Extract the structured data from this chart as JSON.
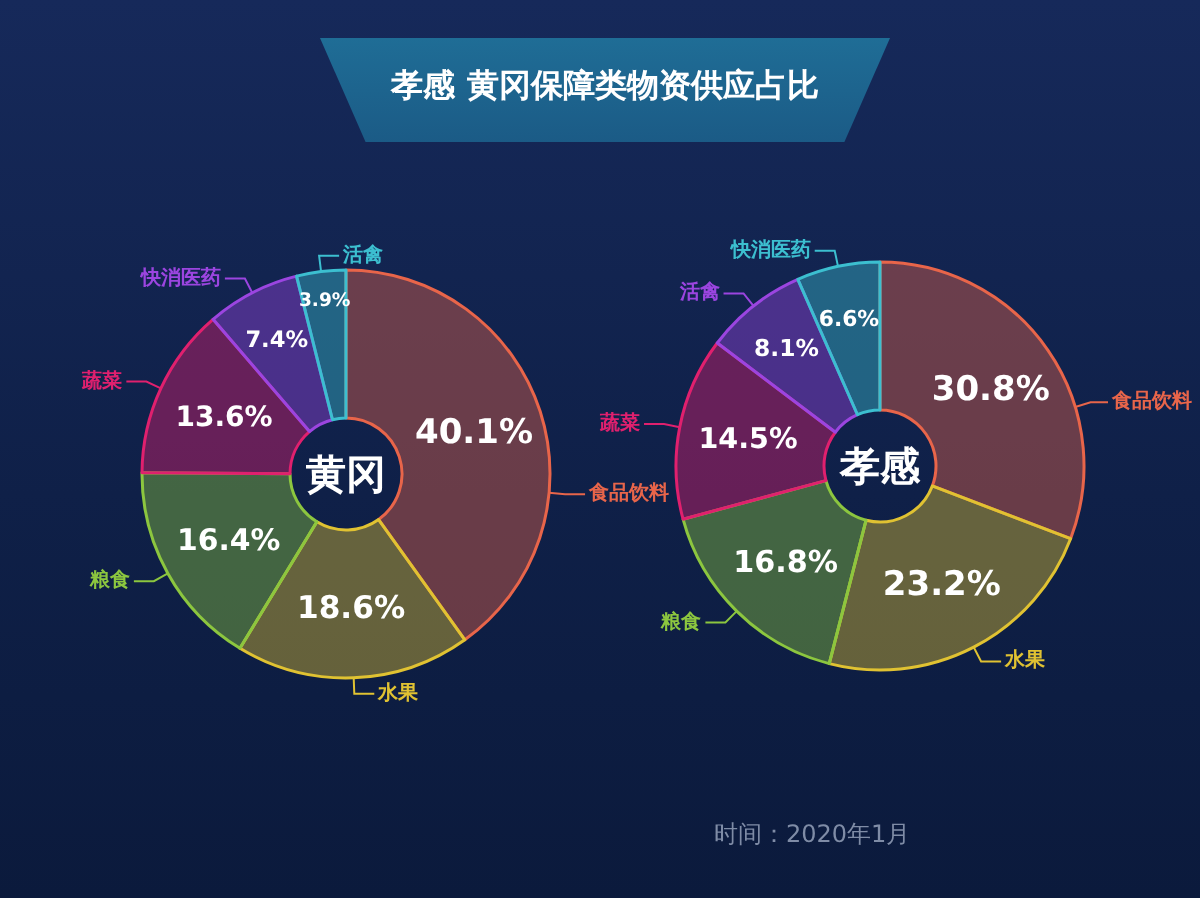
{
  "chart_data": [
    {
      "type": "donut",
      "title": "孝感 黄冈保障类物资供应占比",
      "categories": [
        "食品饮料",
        "水果",
        "粮食",
        "蔬菜",
        "快消医药",
        "活禽"
      ],
      "values": [
        40.1,
        18.6,
        16.4,
        13.6,
        7.4,
        3.9
      ],
      "colors": [
        "#e8654a",
        "#e0c232",
        "#8cc63f",
        "#e0206e",
        "#9b45e0",
        "#3cbfd0"
      ],
      "value_labels": [
        "40.1%",
        "18.6%",
        "16.4%",
        "13.6%",
        "7.4%",
        "3.9%"
      ],
      "annotations": [
        "黄冈"
      ]
    },
    {
      "type": "donut",
      "categories": [
        "食品饮料",
        "水果",
        "粮食",
        "蔬菜",
        "活禽",
        "快消医药"
      ],
      "values": [
        30.8,
        23.2,
        16.8,
        14.5,
        8.1,
        6.6
      ],
      "colors": [
        "#e8654a",
        "#e0c232",
        "#8cc63f",
        "#e0206e",
        "#9b45e0",
        "#3cbfd0"
      ],
      "value_labels": [
        "30.8%",
        "23.2%",
        "16.8%",
        "14.5%",
        "8.1%",
        "6.6%"
      ],
      "annotations": [
        "孝感",
        "时间：2020年1月"
      ]
    }
  ]
}
